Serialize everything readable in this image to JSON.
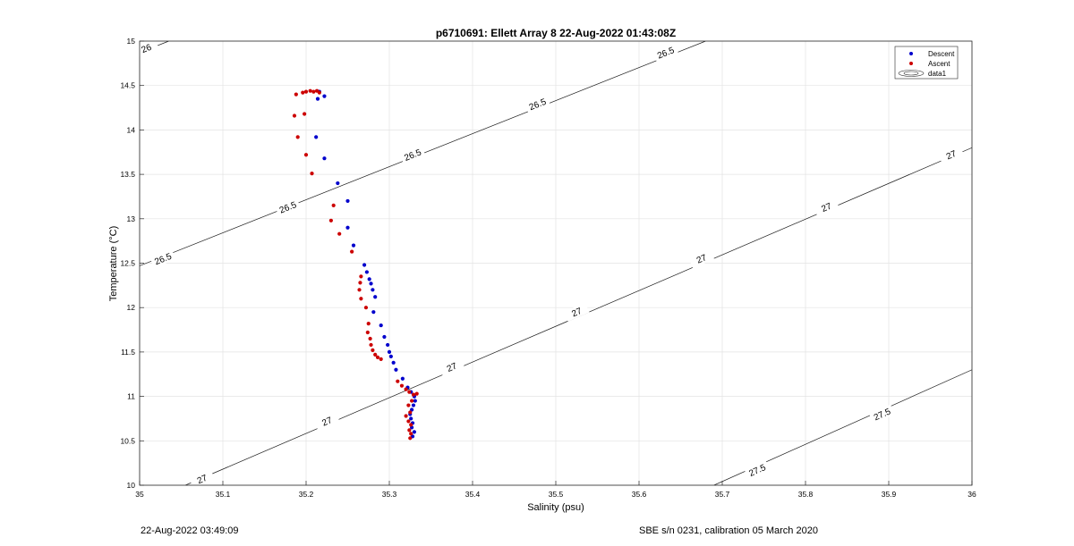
{
  "chart_data": {
    "type": "scatter",
    "title": "p6710691: Ellett Array 8 22-Aug-2022 01:43:08Z",
    "xlabel": "Salinity (psu)",
    "ylabel": "Temperature (°C)",
    "xlim": [
      35,
      36
    ],
    "ylim": [
      10,
      15
    ],
    "x_ticks": [
      35,
      35.1,
      35.2,
      35.3,
      35.4,
      35.5,
      35.6,
      35.7,
      35.8,
      35.9,
      36
    ],
    "x_tick_labels": [
      "35",
      "35.1",
      "35.2",
      "35.3",
      "35.4",
      "35.5",
      "35.6",
      "35.7",
      "35.8",
      "35.9",
      "36"
    ],
    "y_ticks": [
      10,
      10.5,
      11,
      11.5,
      12,
      12.5,
      13,
      13.5,
      14,
      14.5,
      15
    ],
    "y_tick_labels": [
      "10",
      "10.5",
      "11",
      "11.5",
      "12",
      "12.5",
      "13",
      "13.5",
      "14",
      "14.5",
      "15"
    ],
    "grid": true,
    "legend_position": "top-right",
    "legend": [
      "Descent",
      "Ascent",
      "data1"
    ],
    "series": [
      {
        "name": "Descent",
        "color": "#0000cc",
        "points": [
          [
            35.216,
            14.43
          ],
          [
            35.214,
            14.35
          ],
          [
            35.222,
            14.38
          ],
          [
            35.212,
            13.92
          ],
          [
            35.222,
            13.68
          ],
          [
            35.238,
            13.4
          ],
          [
            35.25,
            13.2
          ],
          [
            35.25,
            12.9
          ],
          [
            35.257,
            12.7
          ],
          [
            35.27,
            12.48
          ],
          [
            35.273,
            12.4
          ],
          [
            35.276,
            12.32
          ],
          [
            35.278,
            12.27
          ],
          [
            35.28,
            12.2
          ],
          [
            35.283,
            12.12
          ],
          [
            35.281,
            11.95
          ],
          [
            35.29,
            11.8
          ],
          [
            35.294,
            11.67
          ],
          [
            35.298,
            11.58
          ],
          [
            35.3,
            11.5
          ],
          [
            35.302,
            11.45
          ],
          [
            35.305,
            11.38
          ],
          [
            35.308,
            11.3
          ],
          [
            35.316,
            11.2
          ],
          [
            35.322,
            11.1
          ],
          [
            35.326,
            11.05
          ],
          [
            35.33,
            11.0
          ],
          [
            35.331,
            10.95
          ],
          [
            35.329,
            10.9
          ],
          [
            35.327,
            10.85
          ],
          [
            35.325,
            10.8
          ],
          [
            35.326,
            10.75
          ],
          [
            35.328,
            10.7
          ],
          [
            35.327,
            10.65
          ],
          [
            35.33,
            10.6
          ],
          [
            35.328,
            10.55
          ]
        ]
      },
      {
        "name": "Ascent",
        "color": "#cc0000",
        "points": [
          [
            35.188,
            14.4
          ],
          [
            35.196,
            14.42
          ],
          [
            35.2,
            14.43
          ],
          [
            35.205,
            14.44
          ],
          [
            35.209,
            14.43
          ],
          [
            35.213,
            14.44
          ],
          [
            35.216,
            14.42
          ],
          [
            35.186,
            14.16
          ],
          [
            35.198,
            14.18
          ],
          [
            35.19,
            13.92
          ],
          [
            35.2,
            13.72
          ],
          [
            35.207,
            13.51
          ],
          [
            35.233,
            13.15
          ],
          [
            35.23,
            12.98
          ],
          [
            35.24,
            12.83
          ],
          [
            35.255,
            12.63
          ],
          [
            35.266,
            12.35
          ],
          [
            35.265,
            12.28
          ],
          [
            35.264,
            12.2
          ],
          [
            35.266,
            12.1
          ],
          [
            35.272,
            12.0
          ],
          [
            35.275,
            11.82
          ],
          [
            35.274,
            11.72
          ],
          [
            35.277,
            11.65
          ],
          [
            35.278,
            11.58
          ],
          [
            35.28,
            11.52
          ],
          [
            35.283,
            11.47
          ],
          [
            35.286,
            11.44
          ],
          [
            35.29,
            11.42
          ],
          [
            35.31,
            11.17
          ],
          [
            35.315,
            11.12
          ],
          [
            35.32,
            11.08
          ],
          [
            35.324,
            11.05
          ],
          [
            35.329,
            11.02
          ],
          [
            35.333,
            11.03
          ],
          [
            35.327,
            10.95
          ],
          [
            35.323,
            10.9
          ],
          [
            35.325,
            10.82
          ],
          [
            35.32,
            10.78
          ],
          [
            35.323,
            10.72
          ],
          [
            35.326,
            10.68
          ],
          [
            35.324,
            10.62
          ],
          [
            35.326,
            10.58
          ],
          [
            35.325,
            10.53
          ]
        ]
      }
    ],
    "contour_labels": [
      "26",
      "26.5",
      "27",
      "27.5"
    ]
  },
  "footer": {
    "left_text": "22-Aug-2022 03:49:09",
    "right_text": "SBE s/n 0231, calibration 05 March 2020"
  }
}
